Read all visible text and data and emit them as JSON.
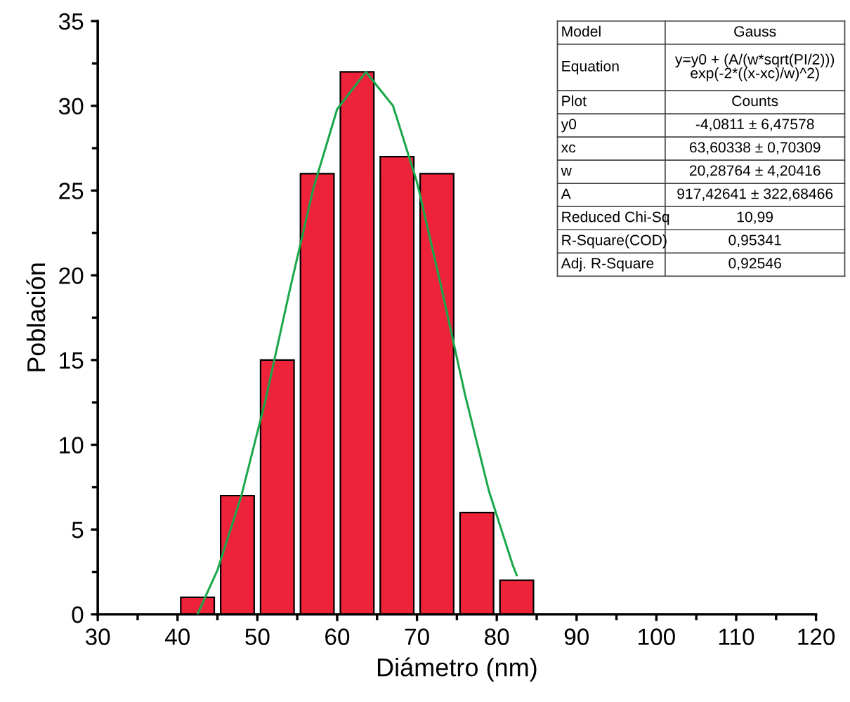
{
  "chart_data": {
    "type": "histogram",
    "xlabel": "Diámetro (nm)",
    "ylabel": "Población",
    "bins": [
      40,
      45,
      50,
      55,
      60,
      65,
      70,
      75,
      80,
      85
    ],
    "values": [
      1,
      7,
      15,
      26,
      32,
      27,
      26,
      6,
      2
    ],
    "color": "#ee2339",
    "series": [
      {
        "type": "line",
        "color": "#1aa84a",
        "x": [
          42.5,
          45,
          48,
          51,
          54,
          57,
          60,
          63.6,
          67,
          70,
          73,
          76,
          79,
          82,
          82.5
        ],
        "values": [
          0,
          2.6,
          7.0,
          12.6,
          19.0,
          25.1,
          29.8,
          32.0,
          30.0,
          25.5,
          19.4,
          13.0,
          7.3,
          2.9,
          2.3
        ]
      }
    ],
    "xlim": [
      30,
      120
    ],
    "xticks": [
      30,
      40,
      50,
      60,
      70,
      80,
      90,
      100,
      110,
      120
    ],
    "ylim": [
      0,
      35
    ],
    "yticks": [
      0,
      5,
      10,
      15,
      20,
      25,
      30,
      35
    ],
    "grid": false,
    "legend": false,
    "annotations": [
      "Model",
      "Gauss",
      "Equation",
      "y=y0 + (A/(w*sqrt(PI/2)))\nexp(-2*((x-xc)/w)^2)",
      "Plot",
      "Counts",
      "y0",
      "-4,0811 ± 6,47578",
      "xc",
      "63,60338 ± 0,70309",
      "w",
      "20,28764 ± 4,20416",
      "A",
      "917,42641 ± 322,68466",
      "Reduced Chi-Sq",
      "10,99",
      "R-Square(COD)",
      "0,95341",
      "Adj. R-Square",
      "0,92546"
    ]
  }
}
